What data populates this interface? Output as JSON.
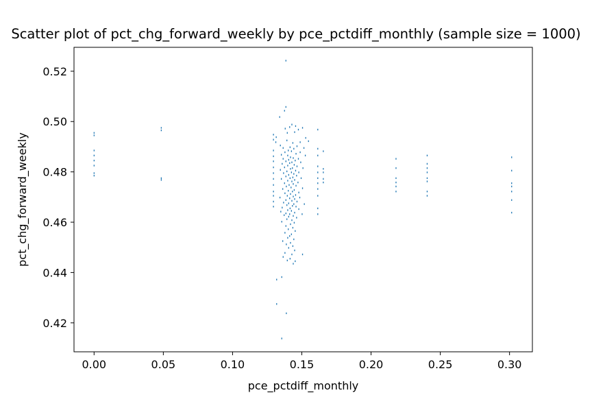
{
  "chart_data": {
    "type": "scatter",
    "title": "Scatter plot of pct_chg_forward_weekly by pce_pctdiff_monthly (sample size = 1000)",
    "xlabel": "pce_pctdiff_monthly",
    "ylabel": "pct_chg_forward_weekly",
    "xlim": [
      -0.0145,
      0.3165
    ],
    "ylim": [
      0.4085,
      0.5295
    ],
    "xticks": [
      0.0,
      0.05,
      0.1,
      0.15,
      0.2,
      0.25,
      0.3
    ],
    "xtick_labels": [
      "0.00",
      "0.05",
      "0.10",
      "0.15",
      "0.20",
      "0.25",
      "0.30"
    ],
    "yticks": [
      0.42,
      0.44,
      0.46,
      0.48,
      0.5,
      0.52
    ],
    "ytick_labels": [
      "0.42",
      "0.44",
      "0.46",
      "0.48",
      "0.50",
      "0.52"
    ],
    "grid": false,
    "legend": "none",
    "marker_color": "#1f77b4",
    "series": [
      {
        "values": [
          [
            0.0,
            0.4955
          ],
          [
            0.0,
            0.4945
          ],
          [
            0.0,
            0.4885
          ],
          [
            0.0,
            0.4865
          ],
          [
            0.0,
            0.4845
          ],
          [
            0.0,
            0.4825
          ],
          [
            0.0,
            0.4795
          ],
          [
            0.0,
            0.4785
          ],
          [
            0.0485,
            0.4975
          ],
          [
            0.0485,
            0.4965
          ],
          [
            0.0485,
            0.4775
          ],
          [
            0.0485,
            0.4768
          ],
          [
            0.1385,
            0.5242
          ],
          [
            0.1385,
            0.5058
          ],
          [
            0.1375,
            0.5043
          ],
          [
            0.134,
            0.5018
          ],
          [
            0.1428,
            0.4988
          ],
          [
            0.1455,
            0.4982
          ],
          [
            0.138,
            0.4972
          ],
          [
            0.1412,
            0.4978
          ],
          [
            0.1505,
            0.4975
          ],
          [
            0.1475,
            0.4968
          ],
          [
            0.1395,
            0.4955
          ],
          [
            0.1448,
            0.4958
          ],
          [
            0.1315,
            0.4938
          ],
          [
            0.1312,
            0.4918
          ],
          [
            0.1528,
            0.4935
          ],
          [
            0.1548,
            0.4922
          ],
          [
            0.1392,
            0.4925
          ],
          [
            0.1435,
            0.4915
          ],
          [
            0.1488,
            0.4918
          ],
          [
            0.1345,
            0.4905
          ],
          [
            0.1415,
            0.4898
          ],
          [
            0.1465,
            0.4902
          ],
          [
            0.1365,
            0.4895
          ],
          [
            0.1515,
            0.4895
          ],
          [
            0.1402,
            0.4885
          ],
          [
            0.1442,
            0.4892
          ],
          [
            0.1378,
            0.4878
          ],
          [
            0.1488,
            0.4878
          ],
          [
            0.1425,
            0.4882
          ],
          [
            0.1352,
            0.4868
          ],
          [
            0.1458,
            0.4872
          ],
          [
            0.1398,
            0.4865
          ],
          [
            0.1525,
            0.4865
          ],
          [
            0.1418,
            0.4858
          ],
          [
            0.1438,
            0.4855
          ],
          [
            0.1365,
            0.4852
          ],
          [
            0.1475,
            0.4852
          ],
          [
            0.1405,
            0.4848
          ],
          [
            0.1452,
            0.4845
          ],
          [
            0.1385,
            0.4842
          ],
          [
            0.1428,
            0.4838
          ],
          [
            0.1412,
            0.4835
          ],
          [
            0.1492,
            0.4838
          ],
          [
            0.1358,
            0.4832
          ],
          [
            0.1445,
            0.4828
          ],
          [
            0.1398,
            0.4825
          ],
          [
            0.1465,
            0.4822
          ],
          [
            0.1375,
            0.4818
          ],
          [
            0.1432,
            0.4815
          ],
          [
            0.1418,
            0.4812
          ],
          [
            0.1508,
            0.4815
          ],
          [
            0.1345,
            0.4808
          ],
          [
            0.1455,
            0.4805
          ],
          [
            0.1392,
            0.4802
          ],
          [
            0.1425,
            0.4798
          ],
          [
            0.1478,
            0.4798
          ],
          [
            0.1368,
            0.4795
          ],
          [
            0.1442,
            0.4792
          ],
          [
            0.1405,
            0.4788
          ],
          [
            0.1462,
            0.4785
          ],
          [
            0.1385,
            0.4782
          ],
          [
            0.1435,
            0.4778
          ],
          [
            0.1415,
            0.4775
          ],
          [
            0.1495,
            0.4775
          ],
          [
            0.1352,
            0.4772
          ],
          [
            0.1448,
            0.4768
          ],
          [
            0.1398,
            0.4765
          ],
          [
            0.1428,
            0.4762
          ],
          [
            0.1472,
            0.4758
          ],
          [
            0.1375,
            0.4755
          ],
          [
            0.1438,
            0.4752
          ],
          [
            0.1408,
            0.4748
          ],
          [
            0.1458,
            0.4745
          ],
          [
            0.1388,
            0.4742
          ],
          [
            0.1422,
            0.4738
          ],
          [
            0.1505,
            0.4735
          ],
          [
            0.1362,
            0.4732
          ],
          [
            0.1445,
            0.4728
          ],
          [
            0.1402,
            0.4725
          ],
          [
            0.1432,
            0.4722
          ],
          [
            0.1478,
            0.4718
          ],
          [
            0.1378,
            0.4715
          ],
          [
            0.1418,
            0.4712
          ],
          [
            0.1455,
            0.4708
          ],
          [
            0.1395,
            0.4705
          ],
          [
            0.1438,
            0.4702
          ],
          [
            0.1342,
            0.4698
          ],
          [
            0.1485,
            0.4698
          ],
          [
            0.1412,
            0.4695
          ],
          [
            0.1448,
            0.4692
          ],
          [
            0.1385,
            0.4688
          ],
          [
            0.1428,
            0.4685
          ],
          [
            0.1465,
            0.4682
          ],
          [
            0.1368,
            0.4678
          ],
          [
            0.1405,
            0.4675
          ],
          [
            0.1442,
            0.4672
          ],
          [
            0.1518,
            0.4672
          ],
          [
            0.1392,
            0.4668
          ],
          [
            0.1432,
            0.4665
          ],
          [
            0.1458,
            0.4662
          ],
          [
            0.1358,
            0.4658
          ],
          [
            0.1415,
            0.4655
          ],
          [
            0.1478,
            0.4652
          ],
          [
            0.1398,
            0.4648
          ],
          [
            0.1425,
            0.4645
          ],
          [
            0.1348,
            0.4642
          ],
          [
            0.1448,
            0.4638
          ],
          [
            0.1385,
            0.4635
          ],
          [
            0.1412,
            0.4632
          ],
          [
            0.1502,
            0.4632
          ],
          [
            0.1372,
            0.4628
          ],
          [
            0.1438,
            0.4625
          ],
          [
            0.1405,
            0.4622
          ],
          [
            0.1462,
            0.4618
          ],
          [
            0.1392,
            0.4612
          ],
          [
            0.1428,
            0.4608
          ],
          [
            0.1355,
            0.4602
          ],
          [
            0.1445,
            0.4598
          ],
          [
            0.1418,
            0.4592
          ],
          [
            0.1385,
            0.4585
          ],
          [
            0.1435,
            0.4578
          ],
          [
            0.1402,
            0.4572
          ],
          [
            0.1452,
            0.4565
          ],
          [
            0.1378,
            0.4558
          ],
          [
            0.1425,
            0.4552
          ],
          [
            0.1412,
            0.4545
          ],
          [
            0.1398,
            0.4538
          ],
          [
            0.1442,
            0.4532
          ],
          [
            0.1362,
            0.4525
          ],
          [
            0.1418,
            0.4518
          ],
          [
            0.1388,
            0.4512
          ],
          [
            0.1435,
            0.4505
          ],
          [
            0.1405,
            0.4498
          ],
          [
            0.1448,
            0.4488
          ],
          [
            0.1378,
            0.4478
          ],
          [
            0.1428,
            0.4472
          ],
          [
            0.1505,
            0.4472
          ],
          [
            0.1365,
            0.4462
          ],
          [
            0.1415,
            0.4455
          ],
          [
            0.1395,
            0.4448
          ],
          [
            0.1452,
            0.4445
          ],
          [
            0.1438,
            0.4435
          ],
          [
            0.1318,
            0.4372
          ],
          [
            0.1355,
            0.4382
          ],
          [
            0.1318,
            0.4275
          ],
          [
            0.1388,
            0.4238
          ],
          [
            0.1355,
            0.4138
          ],
          [
            0.1295,
            0.4948
          ],
          [
            0.1295,
            0.4928
          ],
          [
            0.1295,
            0.4885
          ],
          [
            0.1295,
            0.4862
          ],
          [
            0.1295,
            0.4842
          ],
          [
            0.1295,
            0.4818
          ],
          [
            0.1295,
            0.4795
          ],
          [
            0.1295,
            0.4772
          ],
          [
            0.1295,
            0.4748
          ],
          [
            0.1295,
            0.4722
          ],
          [
            0.1295,
            0.4705
          ],
          [
            0.1295,
            0.4682
          ],
          [
            0.1295,
            0.4662
          ],
          [
            0.1615,
            0.4968
          ],
          [
            0.1615,
            0.4892
          ],
          [
            0.1615,
            0.4865
          ],
          [
            0.1615,
            0.4822
          ],
          [
            0.1615,
            0.4798
          ],
          [
            0.1615,
            0.4775
          ],
          [
            0.1615,
            0.4755
          ],
          [
            0.1615,
            0.4732
          ],
          [
            0.1615,
            0.4705
          ],
          [
            0.1615,
            0.4655
          ],
          [
            0.1615,
            0.4632
          ],
          [
            0.1655,
            0.4882
          ],
          [
            0.1655,
            0.4812
          ],
          [
            0.1655,
            0.4798
          ],
          [
            0.1655,
            0.4772
          ],
          [
            0.1655,
            0.4758
          ],
          [
            0.218,
            0.4852
          ],
          [
            0.218,
            0.4815
          ],
          [
            0.218,
            0.4775
          ],
          [
            0.218,
            0.4758
          ],
          [
            0.218,
            0.4742
          ],
          [
            0.218,
            0.4722
          ],
          [
            0.2405,
            0.4865
          ],
          [
            0.2405,
            0.4832
          ],
          [
            0.2405,
            0.4815
          ],
          [
            0.2405,
            0.4798
          ],
          [
            0.2405,
            0.4775
          ],
          [
            0.2405,
            0.4762
          ],
          [
            0.2405,
            0.4722
          ],
          [
            0.2405,
            0.4705
          ],
          [
            0.3015,
            0.4858
          ],
          [
            0.3015,
            0.4805
          ],
          [
            0.3015,
            0.4755
          ],
          [
            0.3015,
            0.4742
          ],
          [
            0.3015,
            0.4722
          ],
          [
            0.3015,
            0.4688
          ],
          [
            0.3015,
            0.4638
          ]
        ]
      }
    ]
  }
}
